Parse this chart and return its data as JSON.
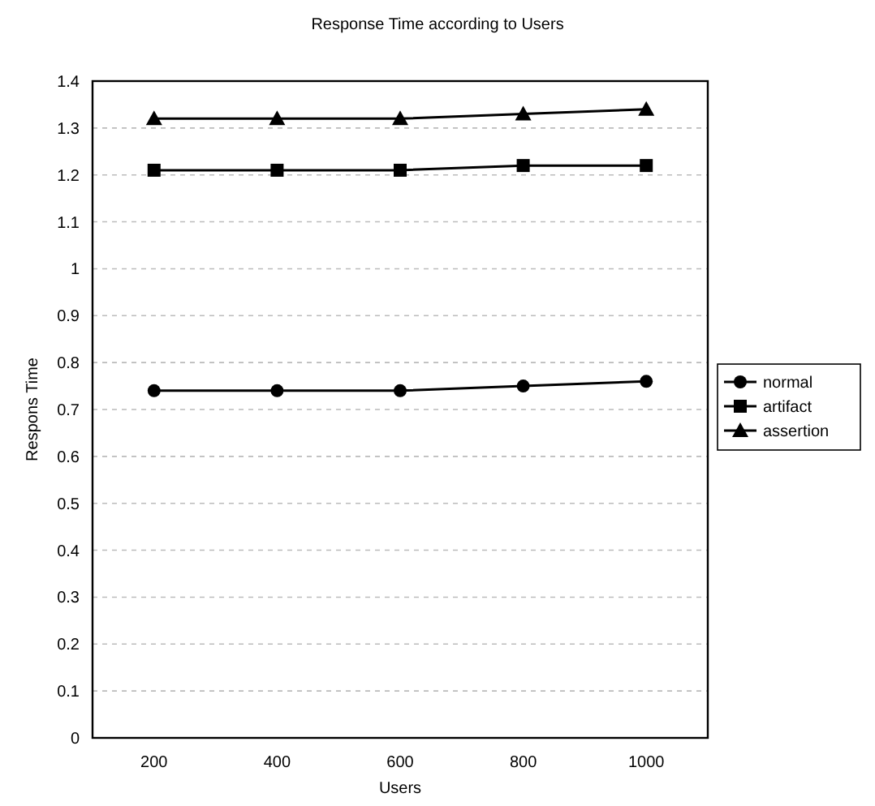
{
  "chart_data": {
    "type": "line",
    "title": "Response Time according to Users",
    "xlabel": "Users",
    "ylabel": "Respons Time",
    "x": [
      200,
      400,
      600,
      800,
      1000
    ],
    "xlim": [
      100,
      1100
    ],
    "xticks": [
      200,
      400,
      600,
      800,
      1000
    ],
    "ylim": [
      0,
      1.4
    ],
    "yticks": [
      0,
      0.1,
      0.2,
      0.3,
      0.4,
      0.5,
      0.6,
      0.7,
      0.8,
      0.9,
      1,
      1.1,
      1.2,
      1.3,
      1.4
    ],
    "grid": "y",
    "legend": "right",
    "series": [
      {
        "name": "normal",
        "color": "#000000",
        "marker": "circle",
        "values": [
          0.74,
          0.74,
          0.74,
          0.75,
          0.76
        ]
      },
      {
        "name": "artifact",
        "color": "#000000",
        "marker": "square",
        "values": [
          1.21,
          1.21,
          1.21,
          1.22,
          1.22
        ]
      },
      {
        "name": "assertion",
        "color": "#000000",
        "marker": "triangle",
        "values": [
          1.32,
          1.32,
          1.32,
          1.33,
          1.34
        ]
      }
    ]
  }
}
